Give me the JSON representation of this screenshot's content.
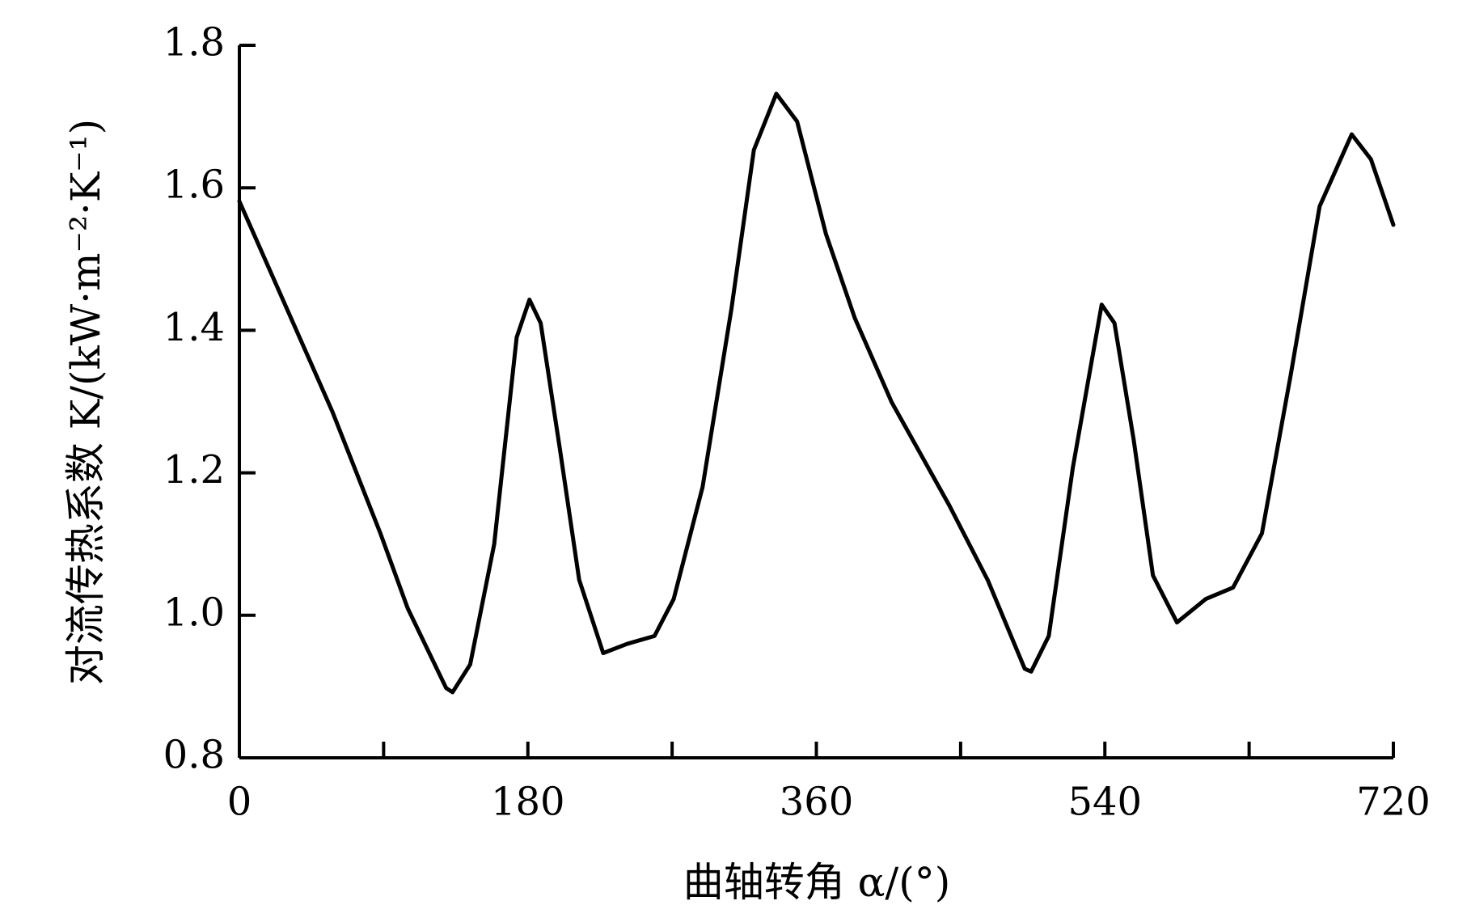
{
  "chart_data": {
    "type": "line",
    "x_label": "曲轴转角 α/(°)",
    "y_label": "对流传热系数 K/(kW·m⁻²·K⁻¹)",
    "series": [
      {
        "color": "#000000",
        "x": [
          0,
          58,
          88,
          105,
          129,
          133,
          144,
          159,
          173,
          181,
          188,
          200,
          212,
          227,
          242,
          259,
          271,
          289,
          307,
          321,
          335,
          348,
          366,
          384,
          407,
          443,
          467,
          490,
          494,
          505,
          520,
          538,
          546,
          558,
          570,
          585,
          603,
          620,
          638,
          656,
          674,
          694,
          706,
          720
        ],
        "values": [
          1.581,
          1.286,
          1.115,
          1.01,
          0.898,
          0.892,
          0.931,
          1.1,
          1.39,
          1.443,
          1.41,
          1.233,
          1.05,
          0.947,
          0.96,
          0.971,
          1.023,
          1.18,
          1.43,
          1.653,
          1.732,
          1.693,
          1.535,
          1.417,
          1.299,
          1.154,
          1.049,
          0.925,
          0.921,
          0.971,
          1.207,
          1.436,
          1.41,
          1.246,
          1.056,
          0.99,
          1.023,
          1.039,
          1.115,
          1.338,
          1.574,
          1.675,
          1.64,
          1.548
        ]
      }
    ],
    "xlim": [
      0,
      720
    ],
    "xticks": [
      0,
      180,
      360,
      540,
      720
    ],
    "xminor_ticks": [
      90,
      270,
      450,
      630
    ],
    "ylim": [
      0.8,
      1.8
    ],
    "yticks": [
      0.8,
      {
        "value": 1,
        "label": "1.0"
      },
      1.2,
      1.4,
      1.6,
      1.8
    ],
    "grid": false
  }
}
